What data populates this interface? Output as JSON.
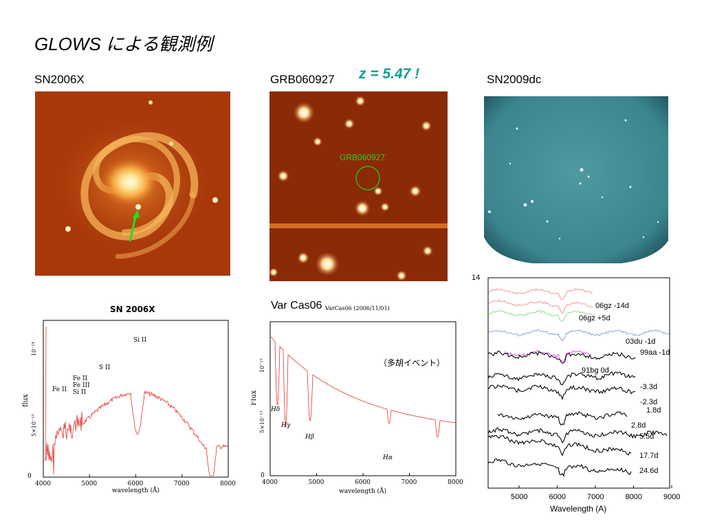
{
  "slide": {
    "title": "GLOWS  による観測例"
  },
  "images": {
    "sn2006x": {
      "label": "SN2006X"
    },
    "grb": {
      "label": "GRB060927",
      "redshift": "z = 5.47 !",
      "marker_label": "GRB060927"
    },
    "sn2009dc": {
      "label": "SN2009dc"
    }
  },
  "chart_data": [
    {
      "type": "line",
      "title": "SN 2006X",
      "xlabel": "wavelength (Å)",
      "ylabel": "flux",
      "x_ticks": [
        "4000",
        "5000",
        "6000",
        "7000",
        "8000"
      ],
      "y_ticks": [
        "0",
        "5×10⁻¹⁵",
        "10⁻¹⁴"
      ],
      "xlim": [
        4000,
        8000
      ],
      "annotations": [
        "Fe II",
        "Fe II",
        "Fe III",
        "Si II",
        "S II",
        "Si II"
      ],
      "color": "#e53030"
    },
    {
      "type": "line",
      "title": "Var Cas06",
      "subtitle": "VarCas06 (2006/11/01)",
      "ylabel": "Flux",
      "xlabel": "wavelength (Å)",
      "x_ticks": [
        "4000",
        "5000",
        "6000",
        "7000",
        "8000"
      ],
      "y_ticks": [
        "0",
        "5×10⁻¹³",
        "10⁻¹²"
      ],
      "xlim": [
        4000,
        8000
      ],
      "annotations": [
        "Hδ",
        "Hγ",
        "Hβ",
        "Hα"
      ],
      "note": "（多胡イベント）",
      "color": "#e53030"
    },
    {
      "type": "line",
      "xlabel": "Wavelength (A)",
      "x_ticks": [
        "5000",
        "6000",
        "7000",
        "8000",
        "9000"
      ],
      "y_ticks": [
        "14"
      ],
      "xlim": [
        4200,
        9000
      ],
      "series": [
        {
          "name": "06gz -14d",
          "color": "#e04040"
        },
        {
          "name": "06gz +5d",
          "color": "#e04040"
        },
        {
          "name": "03du -1d",
          "color": "#30c030"
        },
        {
          "name": "99aa -1d",
          "color": "#3050d0"
        },
        {
          "name": "91bg 0d",
          "color": "#e030e0"
        },
        {
          "name": "-3.3d",
          "color": "#000000"
        },
        {
          "name": "-2.3d",
          "color": "#000000"
        },
        {
          "name": "1.8d",
          "color": "#000000"
        },
        {
          "name": "2.8d",
          "color": "#000000"
        },
        {
          "name": "5.5d",
          "color": "#000000"
        },
        {
          "name": "17.7d",
          "color": "#000000"
        },
        {
          "name": "24.6d",
          "color": "#000000"
        }
      ]
    }
  ]
}
